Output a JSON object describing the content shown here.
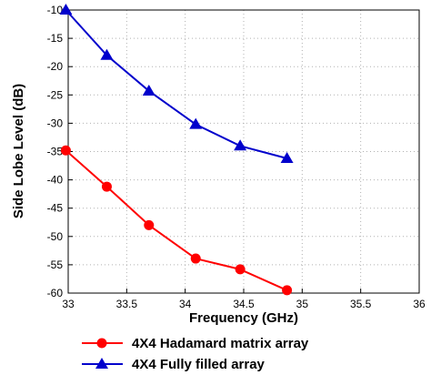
{
  "chart_data": {
    "type": "line",
    "xlabel": "Frequency (GHz)",
    "ylabel": "Side Lobe Level (dB)",
    "xlim": [
      33,
      36
    ],
    "ylim": [
      -60,
      -10
    ],
    "xticks": [
      "33",
      "33.5",
      "34",
      "34.5",
      "35",
      "35.5",
      "36"
    ],
    "yticks": [
      "-10",
      "-15",
      "-20",
      "-25",
      "-30",
      "-35",
      "-40",
      "-45",
      "-50",
      "-55",
      "-60"
    ],
    "grid": true,
    "legend_position": "bottom",
    "series": [
      {
        "name": "4X4 Hadamard matrix array",
        "color": "#ff0000",
        "marker": "circle",
        "x": [
          32.98,
          33.33,
          33.69,
          34.09,
          34.47,
          34.87
        ],
        "y": [
          -34.8,
          -41.2,
          -48.0,
          -53.9,
          -55.8,
          -59.5
        ]
      },
      {
        "name": "4X4 Fully filled array",
        "color": "#0000cc",
        "marker": "triangle",
        "x": [
          32.98,
          33.33,
          33.69,
          34.09,
          34.47,
          34.87
        ],
        "y": [
          -10.0,
          -18.0,
          -24.3,
          -30.2,
          -34.0,
          -36.2
        ]
      }
    ]
  }
}
